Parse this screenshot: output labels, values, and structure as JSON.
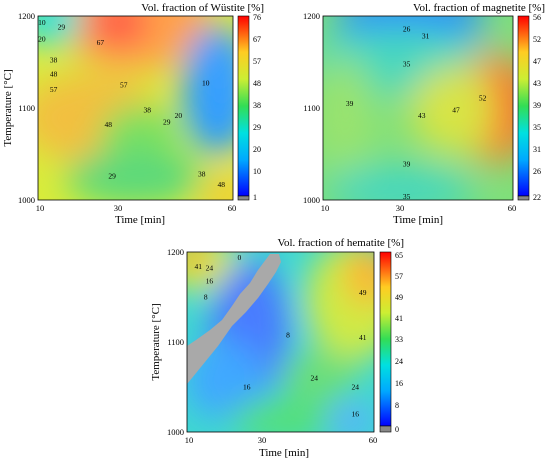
{
  "chart_data": [
    {
      "type": "heatmap",
      "title": "Vol. fraction of Wüstite [%]",
      "xlabel": "Time [min]",
      "ylabel": "Temperature [°C]",
      "x_ticks": [
        10,
        30,
        60
      ],
      "y_ticks": [
        1000,
        1100,
        1200
      ],
      "xlim": [
        10,
        60
      ],
      "ylim": [
        1000,
        1200
      ],
      "colorbar_ticks": [
        1,
        10,
        20,
        29,
        38,
        48,
        57,
        67,
        76
      ],
      "contour_labels": [
        {
          "text": "10",
          "x": 11,
          "y": 1193
        },
        {
          "text": "29",
          "x": 16,
          "y": 1188
        },
        {
          "text": "20",
          "x": 11,
          "y": 1175
        },
        {
          "text": "67",
          "x": 26,
          "y": 1171
        },
        {
          "text": "38",
          "x": 14,
          "y": 1152
        },
        {
          "text": "48",
          "x": 14,
          "y": 1137
        },
        {
          "text": "57",
          "x": 14,
          "y": 1120
        },
        {
          "text": "57",
          "x": 32,
          "y": 1125
        },
        {
          "text": "10",
          "x": 53,
          "y": 1127
        },
        {
          "text": "38",
          "x": 38,
          "y": 1098
        },
        {
          "text": "20",
          "x": 46,
          "y": 1092
        },
        {
          "text": "29",
          "x": 43,
          "y": 1085
        },
        {
          "text": "48",
          "x": 28,
          "y": 1082
        },
        {
          "text": "29",
          "x": 29,
          "y": 1026
        },
        {
          "text": "38",
          "x": 52,
          "y": 1028
        },
        {
          "text": "48",
          "x": 57,
          "y": 1017
        }
      ]
    },
    {
      "type": "heatmap",
      "title": "Vol. fraction of magnetite [%]",
      "xlabel": "Time [min]",
      "ylabel": "",
      "x_ticks": [
        10,
        30,
        60
      ],
      "y_ticks": [
        1000,
        1100,
        1200
      ],
      "xlim": [
        10,
        60
      ],
      "ylim": [
        1000,
        1200
      ],
      "colorbar_ticks": [
        22,
        26,
        31,
        35,
        39,
        43,
        47,
        52,
        56
      ],
      "contour_labels": [
        {
          "text": "26",
          "x": 32,
          "y": 1186
        },
        {
          "text": "31",
          "x": 37,
          "y": 1178
        },
        {
          "text": "35",
          "x": 32,
          "y": 1148
        },
        {
          "text": "39",
          "x": 17,
          "y": 1105
        },
        {
          "text": "52",
          "x": 52,
          "y": 1111
        },
        {
          "text": "47",
          "x": 45,
          "y": 1098
        },
        {
          "text": "43",
          "x": 36,
          "y": 1092
        },
        {
          "text": "39",
          "x": 32,
          "y": 1039
        },
        {
          "text": "35",
          "x": 32,
          "y": 1004
        }
      ]
    },
    {
      "type": "heatmap",
      "title": "Vol. fraction of hematite [%]",
      "xlabel": "Time [min]",
      "ylabel": "Temperature [°C]",
      "x_ticks": [
        10,
        30,
        60
      ],
      "y_ticks": [
        1000,
        1100,
        1200
      ],
      "xlim": [
        10,
        60
      ],
      "ylim": [
        1000,
        1200
      ],
      "colorbar_ticks": [
        0,
        8,
        16,
        24,
        33,
        41,
        49,
        57,
        65
      ],
      "contour_labels": [
        {
          "text": "0",
          "x": 24,
          "y": 1194
        },
        {
          "text": "41",
          "x": 13,
          "y": 1184
        },
        {
          "text": "24",
          "x": 16,
          "y": 1182
        },
        {
          "text": "16",
          "x": 16,
          "y": 1168
        },
        {
          "text": "8",
          "x": 15,
          "y": 1150
        },
        {
          "text": "49",
          "x": 57,
          "y": 1155
        },
        {
          "text": "41",
          "x": 57,
          "y": 1105
        },
        {
          "text": "8",
          "x": 37,
          "y": 1108
        },
        {
          "text": "16",
          "x": 26,
          "y": 1050
        },
        {
          "text": "24",
          "x": 44,
          "y": 1060
        },
        {
          "text": "24",
          "x": 55,
          "y": 1050
        },
        {
          "text": "16",
          "x": 55,
          "y": 1020
        }
      ]
    }
  ]
}
